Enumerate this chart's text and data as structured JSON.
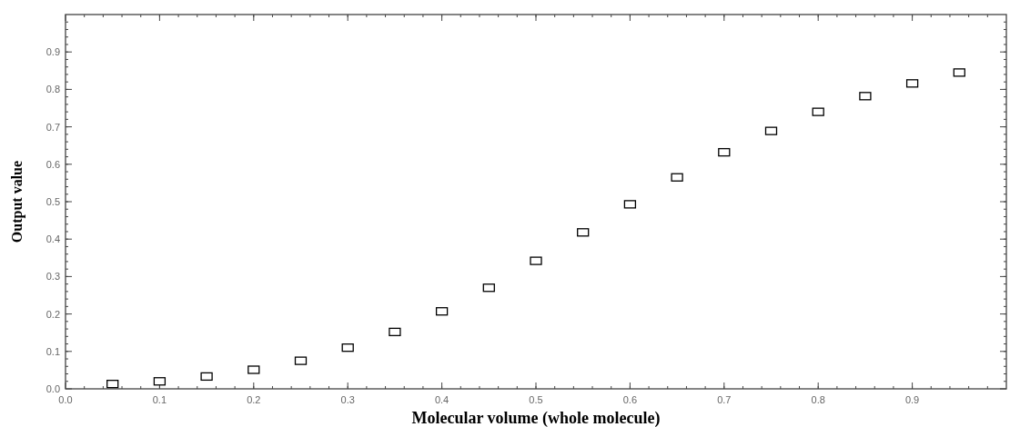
{
  "chart_data": {
    "type": "scatter",
    "xlabel": "Molecular volume (whole molecule)",
    "ylabel": "Output value",
    "x": [
      0.05,
      0.1,
      0.15,
      0.2,
      0.25,
      0.3,
      0.35,
      0.4,
      0.45,
      0.5,
      0.55,
      0.6,
      0.65,
      0.7,
      0.75,
      0.8,
      0.85,
      0.9,
      0.95
    ],
    "series": [
      {
        "color": "#000000",
        "values": [
          0.013,
          0.02,
          0.033,
          0.051,
          0.075,
          0.11,
          0.152,
          0.207,
          0.27,
          0.342,
          0.418,
          0.493,
          0.565,
          0.632,
          0.689,
          0.74,
          0.782,
          0.816,
          0.845
        ]
      }
    ],
    "marker": "square",
    "xlim": [
      0,
      1
    ],
    "ylim": [
      0,
      1
    ],
    "xticks": [
      "0.0",
      0.1,
      0.2,
      0.3,
      0.4,
      0.5,
      0.6,
      0.7,
      0.8,
      0.9
    ],
    "yticks": [
      "0.0",
      0.1,
      0.2,
      0.3,
      0.4,
      0.5,
      0.6,
      0.7,
      0.8,
      0.9
    ]
  }
}
